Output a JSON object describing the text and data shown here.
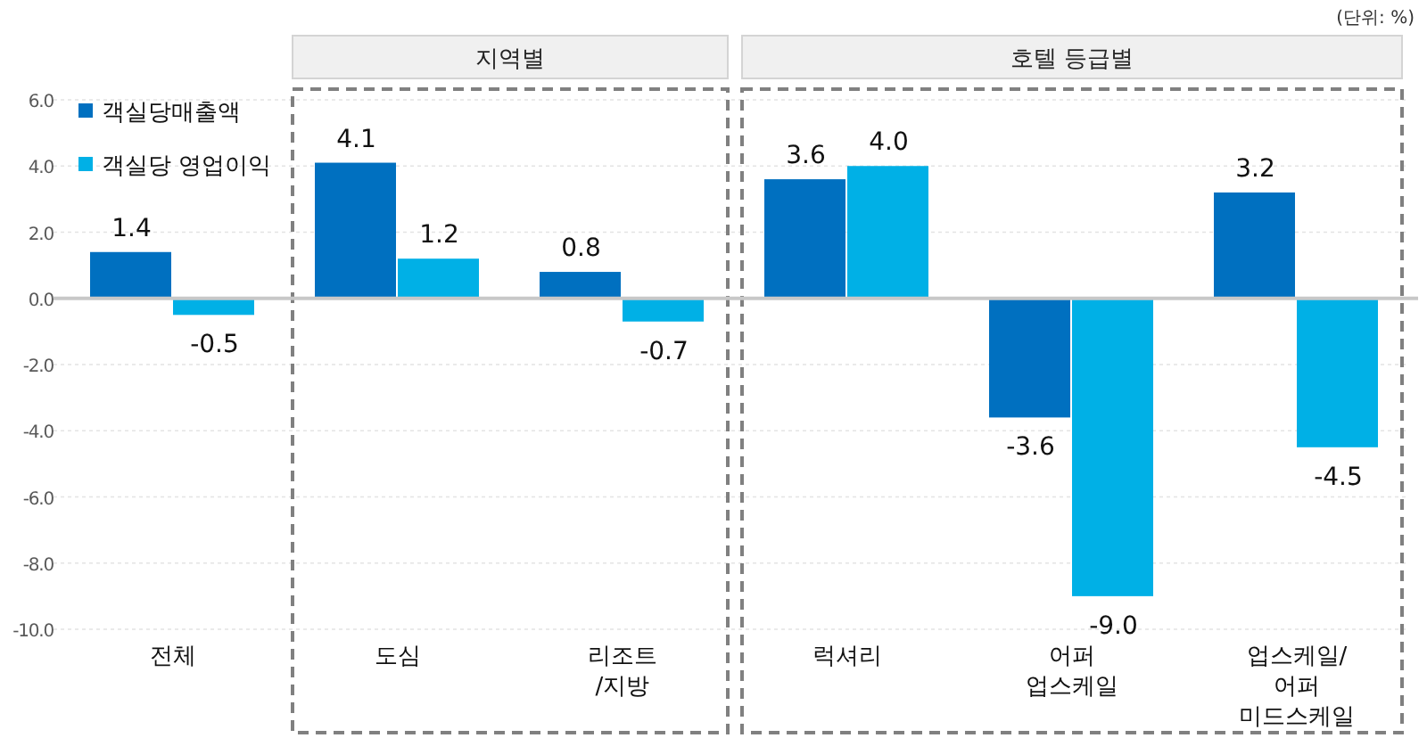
{
  "chart_data": {
    "type": "bar",
    "categories": [
      "전체",
      "도심",
      "리조트\n/지방",
      "럭셔리",
      "어퍼\n업스케일",
      "업스케일/\n어퍼\n미드스케일"
    ],
    "series": [
      {
        "name": "객실당매출액",
        "color": "#0070c0",
        "values": [
          1.4,
          4.1,
          0.8,
          3.6,
          -3.6,
          3.2
        ],
        "value_labels": [
          "1.4",
          "4.1",
          "0.8",
          "3.6",
          "-3.6",
          "3.2"
        ]
      },
      {
        "name": "객실당 영업이익",
        "color": "#00b0e6",
        "values": [
          -0.5,
          1.2,
          -0.7,
          4.0,
          -9.0,
          -4.5
        ],
        "value_labels": [
          "-0.5",
          "1.2",
          "-0.7",
          "4.0",
          "-9.0",
          "-4.5"
        ]
      }
    ],
    "ylim": [
      -10,
      6
    ],
    "yticks": [
      {
        "value": -10,
        "label": "-10.0"
      },
      {
        "value": -8,
        "label": "-8.0"
      },
      {
        "value": -6,
        "label": "-6.0"
      },
      {
        "value": -4,
        "label": "-4.0"
      },
      {
        "value": -2,
        "label": "-2.0"
      },
      {
        "value": 0,
        "label": "0.0"
      },
      {
        "value": 2,
        "label": "2.0"
      },
      {
        "value": 4,
        "label": "4.0"
      },
      {
        "value": 6,
        "label": "6.0"
      }
    ],
    "grid": "y",
    "legend": "top left",
    "annotations": [
      "(단위: %)",
      "지역별",
      "호텔 등급별"
    ]
  }
}
